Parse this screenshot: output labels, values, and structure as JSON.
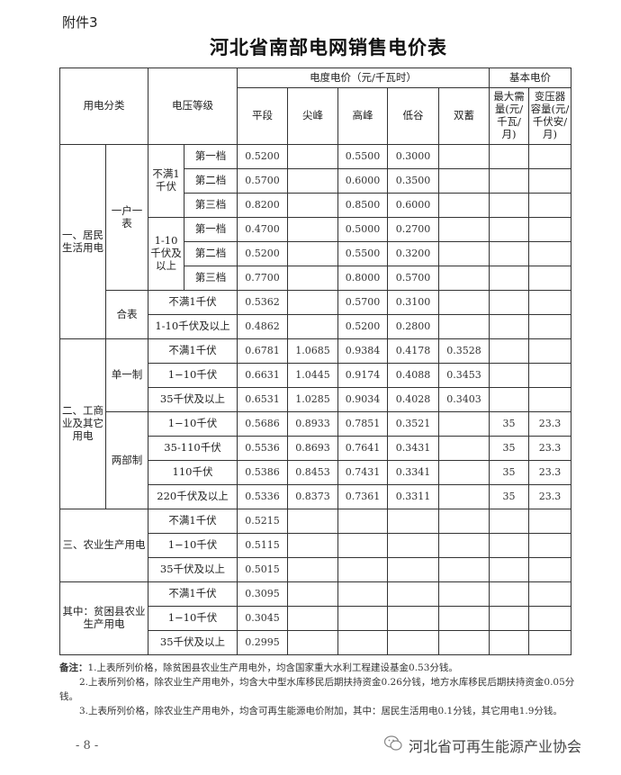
{
  "attachment_label": "附件3",
  "title": "河北省南部电网销售电价表",
  "header": {
    "category": "用电分类",
    "voltage": "电压等级",
    "energy_price": "电度电价（元/千瓦时）",
    "basic_price": "基本电价",
    "energy_cols": [
      "平段",
      "尖峰",
      "高峰",
      "低谷",
      "双蓄"
    ],
    "basic_cols": [
      "最大需量(元/千瓦/月)",
      "变压器容量(元/千伏安/月)"
    ]
  },
  "groups": [
    {
      "label": "一、居民生活用电",
      "children": [
        {
          "label": "一户一表",
          "children": [
            {
              "label": "不满1千伏",
              "children": [
                {
                  "label": "第一档",
                  "values": [
                    "0.5200",
                    "",
                    "0.5500",
                    "0.3000",
                    "",
                    "",
                    ""
                  ]
                },
                {
                  "label": "第二档",
                  "values": [
                    "0.5700",
                    "",
                    "0.6000",
                    "0.3500",
                    "",
                    "",
                    ""
                  ]
                },
                {
                  "label": "第三档",
                  "values": [
                    "0.8200",
                    "",
                    "0.8500",
                    "0.6000",
                    "",
                    "",
                    ""
                  ]
                }
              ]
            },
            {
              "label": "1-10千伏及以上",
              "children": [
                {
                  "label": "第一档",
                  "values": [
                    "0.4700",
                    "",
                    "0.5000",
                    "0.2700",
                    "",
                    "",
                    ""
                  ]
                },
                {
                  "label": "第二档",
                  "values": [
                    "0.5200",
                    "",
                    "0.5500",
                    "0.3200",
                    "",
                    "",
                    ""
                  ]
                },
                {
                  "label": "第三档",
                  "values": [
                    "0.7700",
                    "",
                    "0.8000",
                    "0.5700",
                    "",
                    "",
                    ""
                  ]
                }
              ]
            }
          ]
        },
        {
          "label": "合表",
          "children": [
            {
              "label": "不满1千伏",
              "values": [
                "0.5362",
                "",
                "0.5700",
                "0.3100",
                "",
                "",
                ""
              ]
            },
            {
              "label": "1-10千伏及以上",
              "values": [
                "0.4862",
                "",
                "0.5200",
                "0.2800",
                "",
                "",
                ""
              ]
            }
          ]
        }
      ]
    },
    {
      "label": "二、工商业及其它用电",
      "children": [
        {
          "label": "单一制",
          "children": [
            {
              "label": "不满1千伏",
              "values": [
                "0.6781",
                "1.0685",
                "0.9384",
                "0.4178",
                "0.3528",
                "",
                ""
              ]
            },
            {
              "label": "1−10千伏",
              "values": [
                "0.6631",
                "1.0445",
                "0.9174",
                "0.4088",
                "0.3453",
                "",
                ""
              ]
            },
            {
              "label": "35千伏及以上",
              "values": [
                "0.6531",
                "1.0285",
                "0.9034",
                "0.4028",
                "0.3403",
                "",
                ""
              ]
            }
          ]
        },
        {
          "label": "两部制",
          "children": [
            {
              "label": "1−10千伏",
              "values": [
                "0.5686",
                "0.8933",
                "0.7851",
                "0.3521",
                "",
                "35",
                "23.3"
              ]
            },
            {
              "label": "35-110千伏",
              "values": [
                "0.5536",
                "0.8693",
                "0.7641",
                "0.3431",
                "",
                "35",
                "23.3"
              ]
            },
            {
              "label": "110千伏",
              "values": [
                "0.5386",
                "0.8453",
                "0.7431",
                "0.3341",
                "",
                "35",
                "23.3"
              ]
            },
            {
              "label": "220千伏及以上",
              "values": [
                "0.5336",
                "0.8373",
                "0.7361",
                "0.3311",
                "",
                "35",
                "23.3"
              ]
            }
          ]
        }
      ]
    },
    {
      "label": "三、农业生产用电",
      "children": [
        {
          "label": "不满1千伏",
          "values": [
            "0.5215",
            "",
            "",
            "",
            "",
            "",
            ""
          ]
        },
        {
          "label": "1−10千伏",
          "values": [
            "0.5115",
            "",
            "",
            "",
            "",
            "",
            ""
          ]
        },
        {
          "label": "35千伏及以上",
          "values": [
            "0.5015",
            "",
            "",
            "",
            "",
            "",
            ""
          ]
        }
      ]
    },
    {
      "label": "其中：贫困县农业生产用电",
      "children": [
        {
          "label": "不满1千伏",
          "values": [
            "0.3095",
            "",
            "",
            "",
            "",
            "",
            ""
          ]
        },
        {
          "label": "1−10千伏",
          "values": [
            "0.3045",
            "",
            "",
            "",
            "",
            "",
            ""
          ]
        },
        {
          "label": "35千伏及以上",
          "values": [
            "0.2995",
            "",
            "",
            "",
            "",
            "",
            ""
          ]
        }
      ]
    }
  ],
  "notes": {
    "label": "备注：",
    "items": [
      "1.上表所列价格，除贫困县农业生产用电外，均含国家重大水利工程建设基金0.53分钱。",
      "2.上表所列价格，除农业生产用电外，均含大中型水库移民后期扶持资金0.26分钱，地方水库移民后期扶持资金0.05分钱。",
      "3.上表所列价格，除农业生产用电外，均含可再生能源电价附加，其中：居民生活用电0.1分钱，其它用电1.9分钱。"
    ]
  },
  "page_number": "- 8 -",
  "watermark": {
    "text": "河北省可再生能源产业协会",
    "icon": "wechat-icon"
  }
}
